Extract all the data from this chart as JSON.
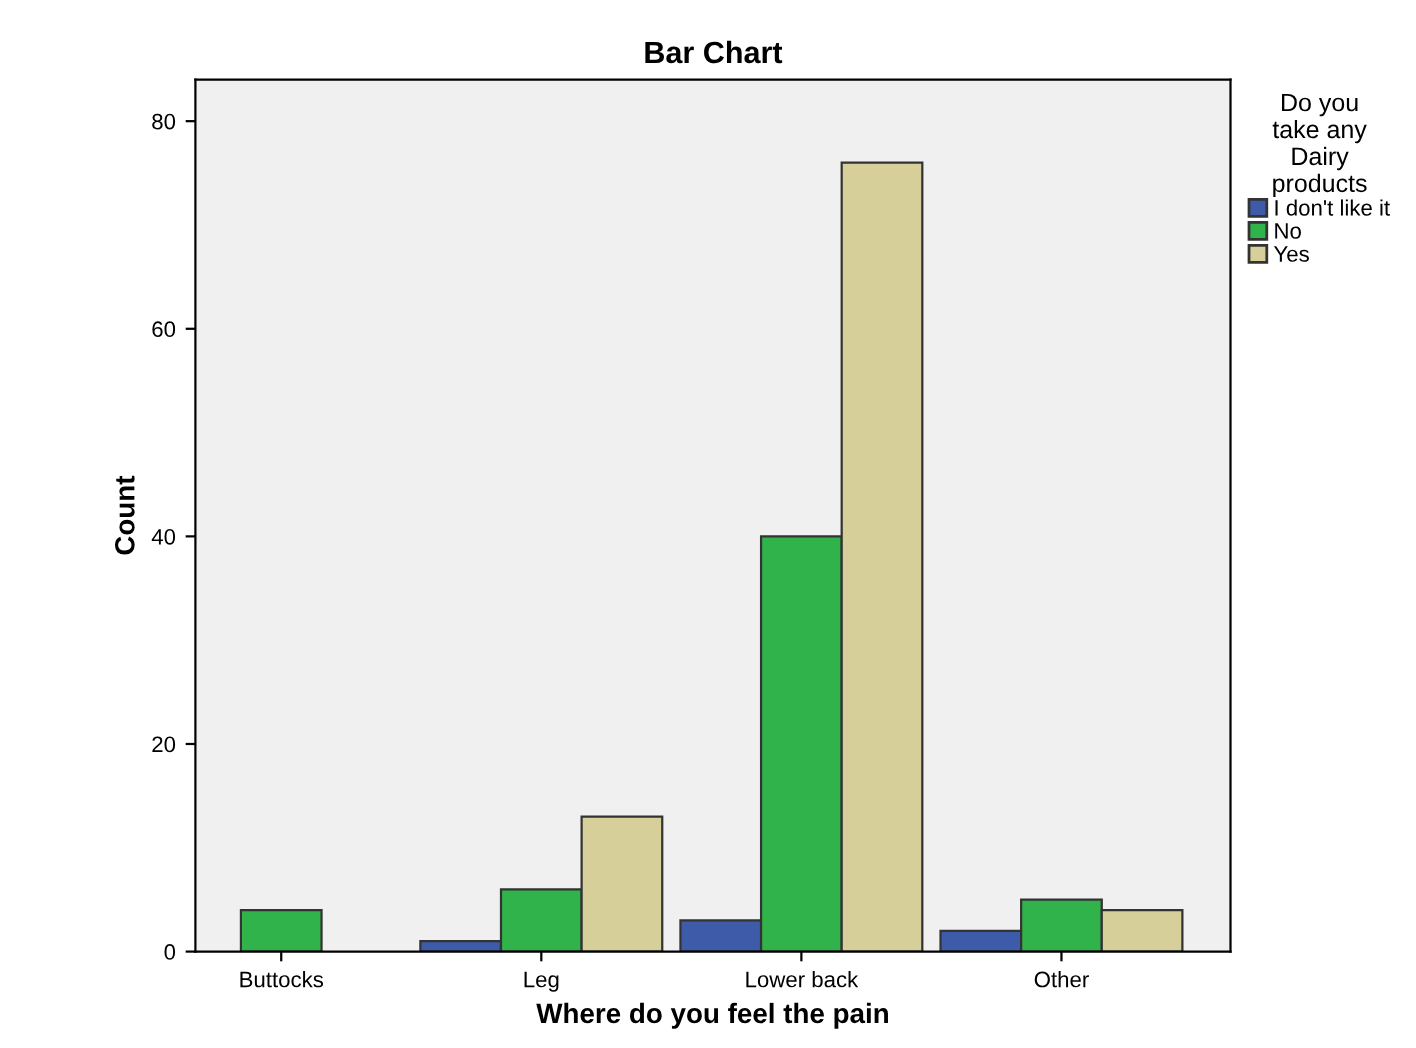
{
  "chart_data": {
    "type": "bar",
    "title": "Bar Chart",
    "xlabel": "Where do you feel the pain",
    "ylabel": "Count",
    "legend_title": "Do you\ntake any\nDairy\nproducts",
    "categories": [
      "Buttocks",
      "Leg",
      "Lower back",
      "Other"
    ],
    "series": [
      {
        "name": "I don't like it",
        "color": "#3d5ba9",
        "values": [
          null,
          1,
          3,
          2
        ]
      },
      {
        "name": "No",
        "color": "#2fb34a",
        "values": [
          4,
          6,
          40,
          5
        ]
      },
      {
        "name": "Yes",
        "color": "#d6cf9a",
        "values": [
          null,
          13,
          76,
          4
        ]
      }
    ],
    "ylim": [
      0,
      84
    ],
    "yticks": [
      0,
      20,
      40,
      60,
      80
    ],
    "grid": false,
    "legend": "right"
  }
}
